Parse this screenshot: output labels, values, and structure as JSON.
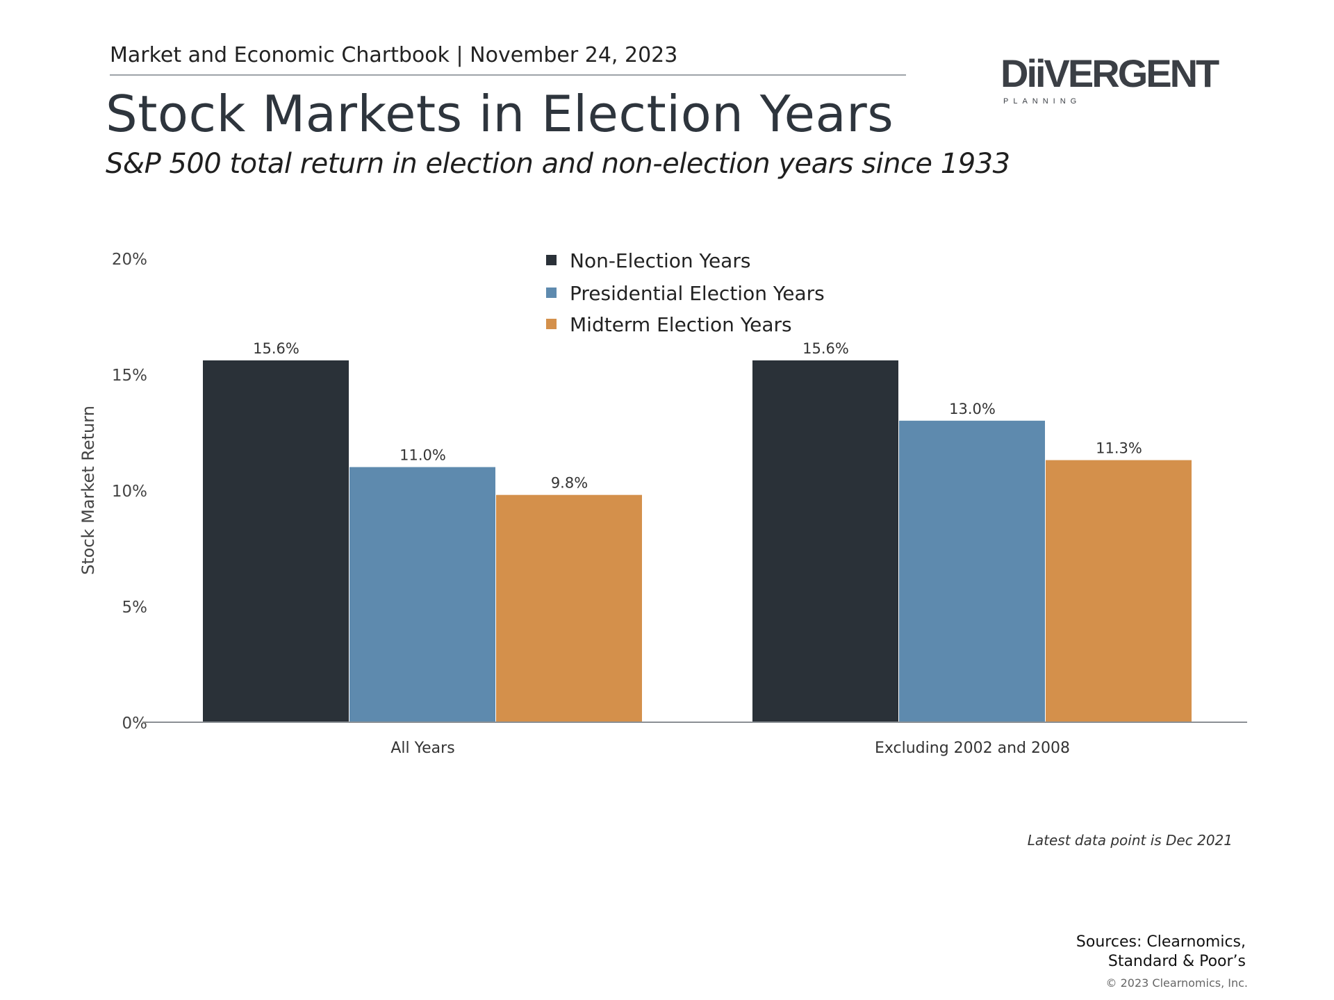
{
  "header": {
    "chartbook": "Market and Economic Chartbook | November 24, 2023",
    "title": "Stock Markets in Election Years",
    "subtitle": "S&P 500 total return in election and non-election years since 1933"
  },
  "logo": {
    "word": "DiiVERGENT",
    "sub": "PLANNING"
  },
  "colors": {
    "non_election": "#2a3138",
    "presidential": "#5e8aae",
    "midterm": "#d4904b"
  },
  "chart_data": {
    "type": "bar",
    "categories": [
      "All Years",
      "Excluding 2002 and 2008"
    ],
    "series": [
      {
        "name": "Non-Election Years",
        "values": [
          15.6,
          15.6
        ],
        "labels": [
          "15.6%",
          "15.6%"
        ]
      },
      {
        "name": "Presidential Election Years",
        "values": [
          11.0,
          13.0
        ],
        "labels": [
          "11.0%",
          "13.0%"
        ]
      },
      {
        "name": "Midterm Election Years",
        "values": [
          9.8,
          11.3
        ],
        "labels": [
          "9.8%",
          "11.3%"
        ]
      }
    ],
    "ylabel": "Stock Market Return",
    "ylim": [
      0,
      20
    ],
    "yticks": [
      0,
      5,
      10,
      15,
      20
    ],
    "ytick_labels": [
      "0%",
      "5%",
      "10%",
      "15%",
      "20%"
    ],
    "legend_position": "top-center",
    "grid": false
  },
  "footer": {
    "note": "Latest data point is Dec 2021",
    "sources_line1": "Sources: Clearnomics,",
    "sources_line2": "Standard & Poor’s",
    "copyright": "© 2023 Clearnomics, Inc."
  }
}
